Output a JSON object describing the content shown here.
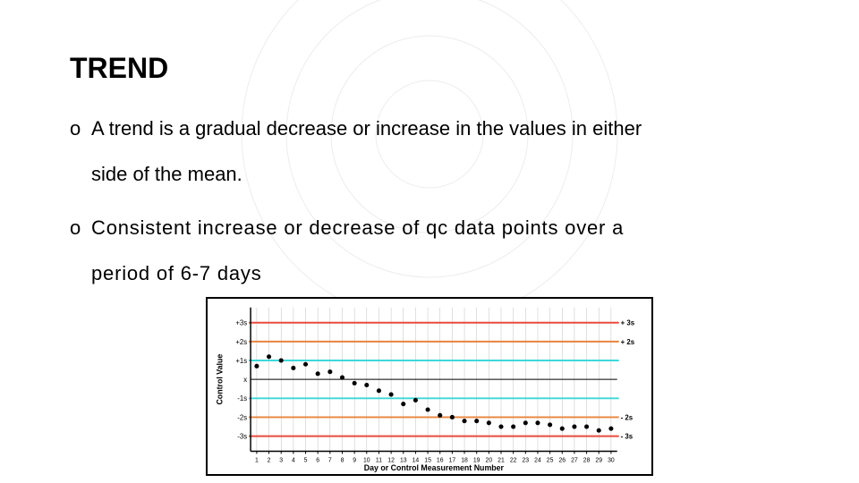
{
  "title": "TREND",
  "bullet1_marker": "o",
  "bullet1_line1": "A trend is a gradual decrease or increase in the values in either",
  "bullet1_line2": "side of the mean.",
  "bullet2_marker": "o",
  "bullet2_line1": "Consistent increase or decrease of qc data points over a",
  "bullet2_line2": "period of 6-7 days",
  "chart": {
    "type": "scatter",
    "ylabel": "Control Value",
    "xlabel": "Day or Control Measurement Number",
    "label_fontsize": 9,
    "tick_fontsize": 8,
    "y_ticks": [
      "+3s",
      "+2s",
      "+1s",
      "x",
      "-1s",
      "-2s",
      "-3s"
    ],
    "right_labels": [
      "+ 3s",
      "+ 2s",
      "- 2s",
      "- 3s"
    ],
    "x_ticks": [
      1,
      2,
      3,
      4,
      5,
      6,
      7,
      8,
      9,
      10,
      11,
      12,
      13,
      14,
      15,
      16,
      17,
      18,
      19,
      20,
      21,
      22,
      23,
      24,
      25,
      26,
      27,
      28,
      29,
      30
    ],
    "xlim": [
      0.5,
      30.5
    ],
    "ylim": [
      -3.8,
      3.8
    ],
    "background_color": "#ffffff",
    "grid_color": "#c0c0c0",
    "grid_on": true,
    "gridlines_y": [
      3,
      2,
      1,
      0,
      -1,
      -2,
      -3
    ],
    "gridlines_x": [
      1,
      2,
      3,
      4,
      5,
      6,
      7,
      8,
      9,
      10,
      11,
      12,
      13,
      14,
      15,
      16,
      17,
      18,
      19,
      20,
      21,
      22,
      23,
      24,
      25,
      26,
      27,
      28,
      29,
      30
    ],
    "control_lines": [
      {
        "y": 3,
        "color": "#e84c3d",
        "width": 2
      },
      {
        "y": 2,
        "color": "#e8843d",
        "width": 2
      },
      {
        "y": 1,
        "color": "#3dd8d8",
        "width": 2
      },
      {
        "y": -1,
        "color": "#3dd8d8",
        "width": 2
      },
      {
        "y": -2,
        "color": "#e8843d",
        "width": 2
      },
      {
        "y": -3,
        "color": "#e84c3d",
        "width": 2
      }
    ],
    "mean_line": {
      "y": 0,
      "color": "#000000",
      "width": 1
    },
    "points": [
      {
        "x": 1,
        "y": 0.7
      },
      {
        "x": 2,
        "y": 1.2
      },
      {
        "x": 3,
        "y": 1.0
      },
      {
        "x": 4,
        "y": 0.6
      },
      {
        "x": 5,
        "y": 0.8
      },
      {
        "x": 6,
        "y": 0.3
      },
      {
        "x": 7,
        "y": 0.4
      },
      {
        "x": 8,
        "y": 0.1
      },
      {
        "x": 9,
        "y": -0.2
      },
      {
        "x": 10,
        "y": -0.3
      },
      {
        "x": 11,
        "y": -0.6
      },
      {
        "x": 12,
        "y": -0.8
      },
      {
        "x": 13,
        "y": -1.3
      },
      {
        "x": 14,
        "y": -1.1
      },
      {
        "x": 15,
        "y": -1.6
      },
      {
        "x": 16,
        "y": -1.9
      },
      {
        "x": 17,
        "y": -2.0
      },
      {
        "x": 18,
        "y": -2.2
      },
      {
        "x": 19,
        "y": -2.2
      },
      {
        "x": 20,
        "y": -2.3
      },
      {
        "x": 21,
        "y": -2.5
      },
      {
        "x": 22,
        "y": -2.5
      },
      {
        "x": 23,
        "y": -2.3
      },
      {
        "x": 24,
        "y": -2.3
      },
      {
        "x": 25,
        "y": -2.4
      },
      {
        "x": 26,
        "y": -2.6
      },
      {
        "x": 27,
        "y": -2.5
      },
      {
        "x": 28,
        "y": -2.5
      },
      {
        "x": 29,
        "y": -2.7
      },
      {
        "x": 30,
        "y": -2.6
      }
    ],
    "point_color": "#000000",
    "point_radius": 2.6,
    "axis_color": "#000000",
    "axis_width": 1.5
  }
}
